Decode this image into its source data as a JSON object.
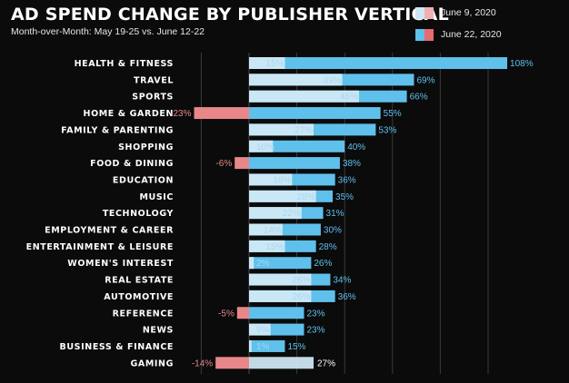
{
  "title": "AD SPEND CHANGE BY PUBLISHER VERTICAL",
  "subtitle": "Month-over-Month: May 19-25 vs. June 12-22",
  "legend": [
    {
      "label": "June 9, 2020",
      "colors": [
        "#cfe6f4",
        "#f0b0b2"
      ]
    },
    {
      "label": "June 22, 2020",
      "colors": [
        "#5fc0ec",
        "#e56b6f"
      ]
    }
  ],
  "colors": {
    "june22_positive": "#5fc0ec",
    "june22_negative": "#e8878a",
    "june9_positive": "#d2e9f6",
    "june9_negative": "#f0b4b6",
    "positive_label": "#5fc0ec",
    "negative_label": "#e8878a",
    "inner_label": "#a9d7ef",
    "grid": "#3a3a3a"
  },
  "chart_data": {
    "type": "bar",
    "orientation": "horizontal",
    "title": "AD SPEND CHANGE BY PUBLISHER VERTICAL",
    "subtitle": "Month-over-Month: May 19-25 vs. June 12-22",
    "unit": "%",
    "xlim": [
      -23,
      110
    ],
    "grid": true,
    "legend_position": "top-right",
    "categories": [
      "HEALTH & FITNESS",
      "TRAVEL",
      "SPORTS",
      "HOME & GARDEN",
      "FAMILY & PARENTING",
      "SHOPPING",
      "FOOD & DINING",
      "EDUCATION",
      "MUSIC",
      "TECHNOLOGY",
      "EMPLOYMENT & CAREER",
      "ENTERTAINMENT & LEISURE",
      "WOMEN'S INTEREST",
      "REAL ESTATE",
      "AUTOMOTIVE",
      "REFERENCE",
      "NEWS",
      "BUSINESS & FINANCE",
      "GAMING"
    ],
    "series": [
      {
        "name": "June 9, 2020",
        "values": [
          15,
          39,
          46,
          null,
          27,
          10,
          null,
          18,
          28,
          22,
          14,
          15,
          2,
          26,
          26,
          null,
          9,
          1,
          27
        ]
      },
      {
        "name": "June 22, 2020",
        "values": [
          108,
          69,
          66,
          55,
          53,
          40,
          38,
          36,
          35,
          31,
          30,
          28,
          26,
          34,
          36,
          23,
          23,
          15,
          null
        ]
      }
    ],
    "negative_values": [
      null,
      null,
      null,
      -23,
      null,
      null,
      -6,
      null,
      null,
      null,
      null,
      null,
      null,
      null,
      null,
      -5,
      null,
      null,
      -14
    ]
  }
}
